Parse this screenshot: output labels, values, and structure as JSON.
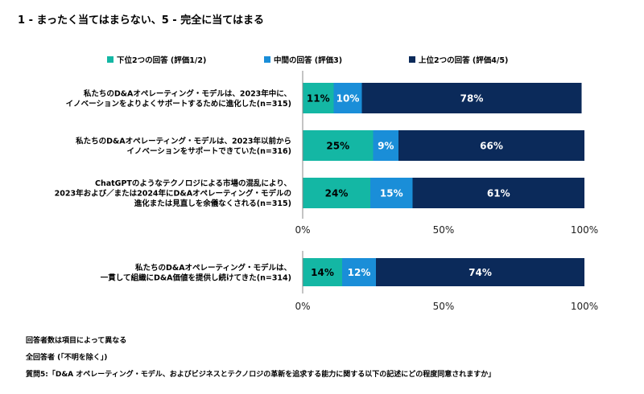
{
  "title": "1 - まったく当てはまらない、5 - 完全に当てはまる",
  "colors": {
    "bottom": "#14b7a4",
    "middle": "#1a8ed8",
    "top": "#0b2a5a",
    "axis": "#888888",
    "label_light": "#000000",
    "label_dark": "#ffffff"
  },
  "legend": [
    {
      "label": "下位2つの回答 (評価1/2)",
      "color": "#14b7a4"
    },
    {
      "label": "中間の回答 (評価3)",
      "color": "#1a8ed8"
    },
    {
      "label": "上位2つの回答 (評価4/5)",
      "color": "#0b2a5a"
    }
  ],
  "chart_data": [
    {
      "type": "bar",
      "orientation": "horizontal",
      "stacked": true,
      "categories": [
        [
          "私たちのD&Aオペレーティング・モデルは、2023年中に、",
          "イノベーションをよりよくサポートするために進化した(n=315)"
        ],
        [
          "私たちのD&Aオペレーティング・モデルは、2023年以前から",
          "イノベーションをサポートできていた(n=316)"
        ],
        [
          "ChatGPTのようなテクノロジによる市場の混乱により、",
          "2023年および／または2024年にD&Aオペレーティング・モデルの",
          "進化または見直しを余儀なくされる(n=315)"
        ]
      ],
      "series": [
        {
          "name": "下位2つの回答 (評価1/2)",
          "values": [
            11,
            25,
            24
          ]
        },
        {
          "name": "中間の回答 (評価3)",
          "values": [
            10,
            9,
            15
          ]
        },
        {
          "name": "上位2つの回答 (評価4/5)",
          "values": [
            78,
            66,
            61
          ]
        }
      ],
      "labels": [
        [
          "11%",
          "10%",
          "78%"
        ],
        [
          "25%",
          "9%",
          "66%"
        ],
        [
          "24%",
          "15%",
          "61%"
        ]
      ],
      "xlim": [
        0,
        100
      ],
      "ticks": [
        "0%",
        "50%",
        "100%"
      ]
    },
    {
      "type": "bar",
      "orientation": "horizontal",
      "stacked": true,
      "categories": [
        [
          "私たちのD&Aオペレーティング・モデルは、",
          "一貫して組織にD&A価値を提供し続けてきた(n=314)"
        ]
      ],
      "series": [
        {
          "name": "下位2つの回答 (評価1/2)",
          "values": [
            14
          ]
        },
        {
          "name": "中間の回答 (評価3)",
          "values": [
            12
          ]
        },
        {
          "name": "上位2つの回答 (評価4/5)",
          "values": [
            74
          ]
        }
      ],
      "labels": [
        [
          "14%",
          "12%",
          "74%"
        ]
      ],
      "xlim": [
        0,
        100
      ],
      "ticks": [
        "0%",
        "50%",
        "100%"
      ]
    }
  ],
  "notes": [
    "回答者数は項目によって異なる",
    "全回答者 (「不明を除く」)",
    "質問5:「D&A オペレーティング・モデル、およびビジネスとテクノロジの革新を追求する能力に関する以下の記述にどの程度同意されますか」"
  ]
}
